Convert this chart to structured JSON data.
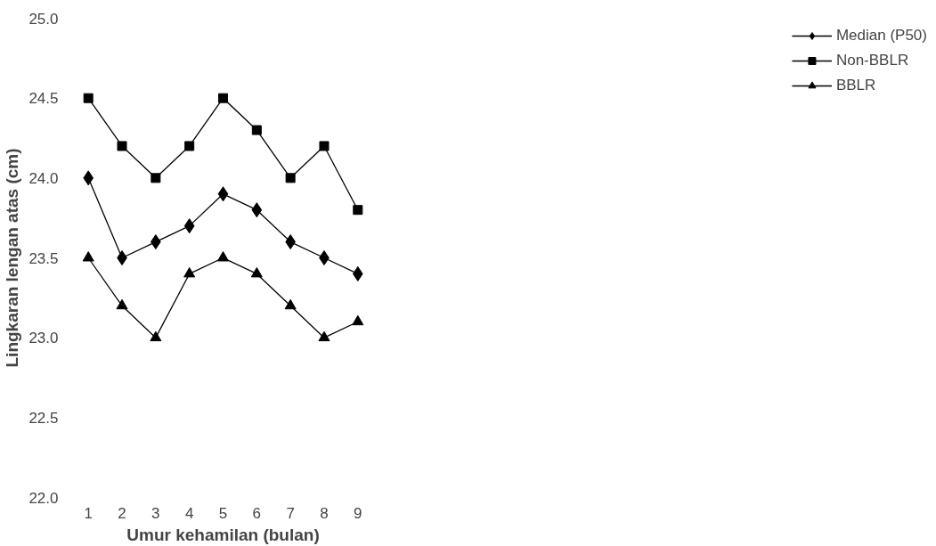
{
  "chart_data": {
    "type": "line",
    "xlabel": "Umur kehamilan (bulan)",
    "ylabel": "Lingkaran lengan atas (cm)",
    "categories": [
      "1",
      "2",
      "3",
      "4",
      "5",
      "6",
      "7",
      "8",
      "9"
    ],
    "series": [
      {
        "name": "Median (P50)",
        "color": "#000000",
        "marker": "diamond",
        "values": [
          24.0,
          23.5,
          23.6,
          23.7,
          23.9,
          23.8,
          23.6,
          23.5,
          23.4
        ]
      },
      {
        "name": "Non-BBLR",
        "color": "#000000",
        "marker": "square",
        "values": [
          24.5,
          24.2,
          24.0,
          24.2,
          24.5,
          24.3,
          24.0,
          24.2,
          23.8
        ]
      },
      {
        "name": "BBLR",
        "color": "#000000",
        "marker": "triangle",
        "values": [
          23.5,
          23.2,
          23.0,
          23.4,
          23.5,
          23.4,
          23.2,
          23.0,
          23.1
        ]
      }
    ],
    "ylim": [
      22.0,
      25.0
    ],
    "yticks": [
      {
        "value": 22.0,
        "label": "22.0"
      },
      {
        "value": 22.5,
        "label": "22.5"
      },
      {
        "value": 23.0,
        "label": "23.0"
      },
      {
        "value": 23.5,
        "label": "23.5"
      },
      {
        "value": 24.0,
        "label": "24.0"
      },
      {
        "value": 24.5,
        "label": "24.5"
      },
      {
        "value": 25.0,
        "label": "25.0"
      }
    ],
    "grid": false,
    "legend": "right",
    "line_style": "solid"
  }
}
